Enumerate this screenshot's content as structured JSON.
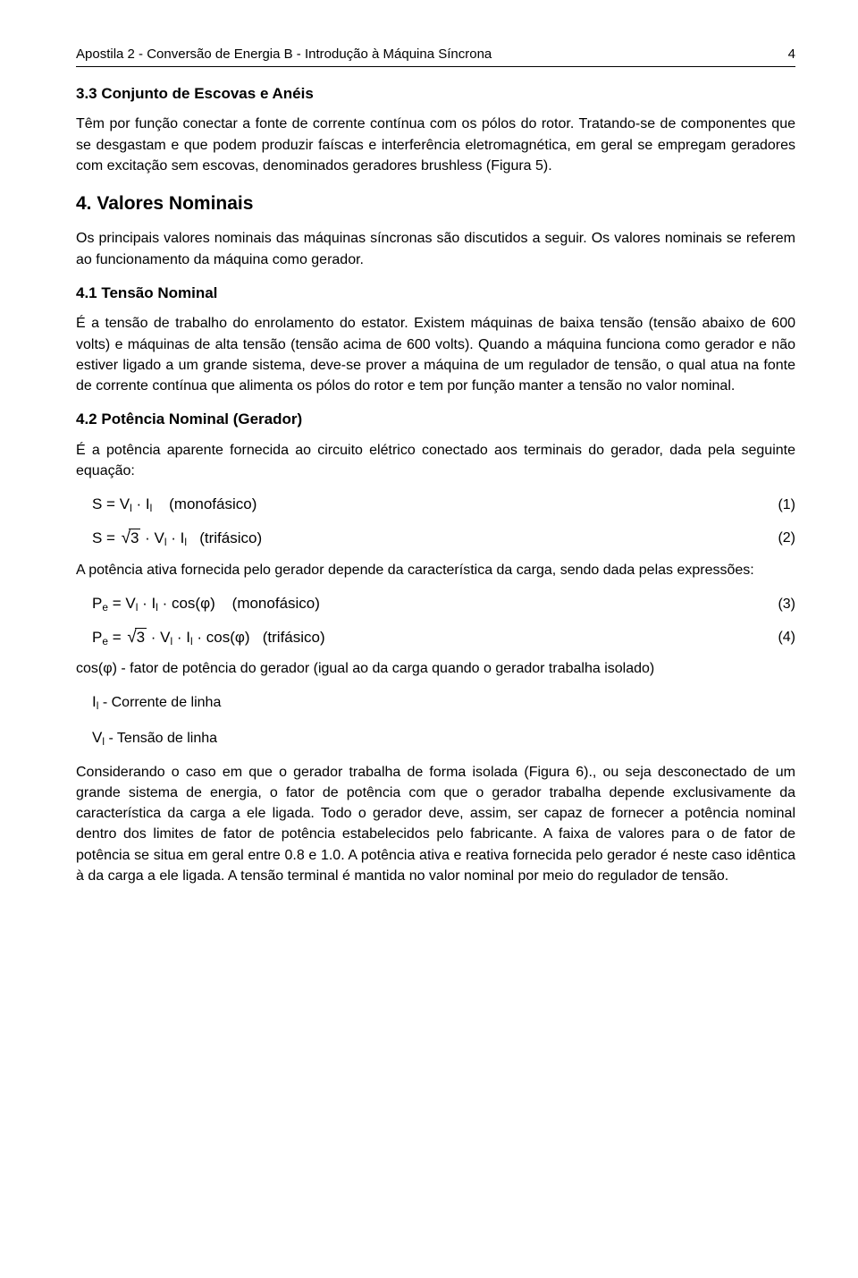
{
  "header": {
    "title": "Apostila 2 - Conversão de Energia B - Introdução à Máquina Síncrona",
    "page": "4"
  },
  "s33": {
    "title": "3.3 Conjunto de Escovas e Anéis",
    "p1": "Têm por função conectar a fonte de corrente contínua com os pólos do rotor. Tratando-se de componentes que se desgastam e que podem produzir faíscas e interferência eletromagnética, em geral se empregam geradores com excitação sem escovas, denominados geradores brushless (Figura 5)."
  },
  "s4": {
    "title": "4. Valores Nominais",
    "p1": "Os principais valores nominais das máquinas síncronas são discutidos a seguir. Os valores nominais se referem ao funcionamento da máquina como gerador."
  },
  "s41": {
    "title": "4.1 Tensão Nominal",
    "p1": "É a tensão de trabalho do enrolamento do estator. Existem máquinas de baixa tensão (tensão abaixo de 600 volts) e máquinas de alta tensão (tensão acima de 600 volts). Quando a máquina funciona como gerador e não estiver ligado a um grande sistema, deve-se prover a máquina de um regulador de tensão, o qual atua na fonte de corrente contínua que alimenta os pólos do rotor e tem por função manter a tensão no valor nominal."
  },
  "s42": {
    "title": "4.2 Potência Nominal (Gerador)",
    "p1": "É a potência aparente fornecida ao circuito elétrico conectado aos terminais do gerador, dada pela seguinte equação:",
    "eq1_note": "(monofásico)",
    "eq1_num": "(1)",
    "eq2_note": "(trifásico)",
    "eq2_num": "(2)",
    "p2": "A potência ativa fornecida pelo gerador depende da característica da carga, sendo dada pelas expressões:",
    "eq3_note": "(monofásico)",
    "eq3_num": "(3)",
    "eq4_note": "(trifásico)",
    "eq4_num": "(4)",
    "cosphi": "cos(φ) - fator de potência do gerador (igual ao da carga quando o gerador trabalha isolado)",
    "il": " - Corrente de linha",
    "vl": " - Tensão de linha",
    "p3": "Considerando o caso em que o gerador trabalha de forma isolada (Figura 6)., ou seja desconectado de um grande sistema de energia, o fator de potência com que o gerador trabalha depende exclusivamente da característica da carga a ele ligada. Todo o gerador deve, assim, ser capaz de fornecer a potência nominal dentro dos limites de fator de potência estabelecidos pelo fabricante. A faixa de valores para o de fator de potência se situa em geral entre 0.8 e 1.0. A potência ativa e reativa fornecida pelo gerador é neste caso idêntica à da carga a ele ligada. A tensão terminal é mantida no valor nominal por meio do regulador de tensão."
  }
}
